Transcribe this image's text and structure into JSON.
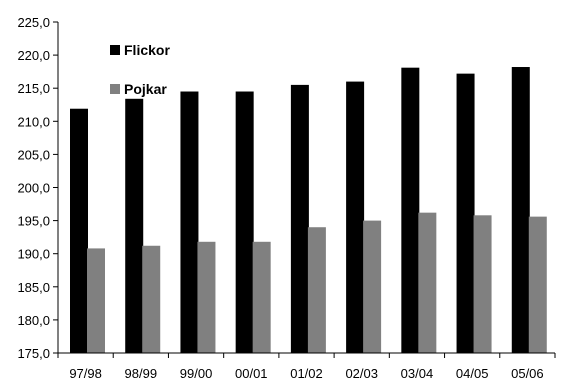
{
  "chart_data": {
    "type": "bar",
    "categories": [
      "97/98",
      "98/99",
      "99/00",
      "00/01",
      "01/02",
      "02/03",
      "03/04",
      "04/05",
      "05/06"
    ],
    "series": [
      {
        "name": "Flickor",
        "color": "#000000",
        "values": [
          211.9,
          213.4,
          214.5,
          214.5,
          215.5,
          216.0,
          218.1,
          217.2,
          218.2
        ]
      },
      {
        "name": "Pojkar",
        "color": "#808080",
        "values": [
          190.8,
          191.2,
          191.8,
          191.8,
          194.0,
          195.0,
          196.2,
          195.8,
          195.6
        ]
      }
    ],
    "y_ticks": [
      "175,0",
      "180,0",
      "185,0",
      "190,0",
      "195,0",
      "200,0",
      "205,0",
      "210,0",
      "215,0",
      "220,0",
      "225,0"
    ],
    "ylim": [
      175,
      225
    ],
    "legend_position": "top-left",
    "grid": false
  }
}
